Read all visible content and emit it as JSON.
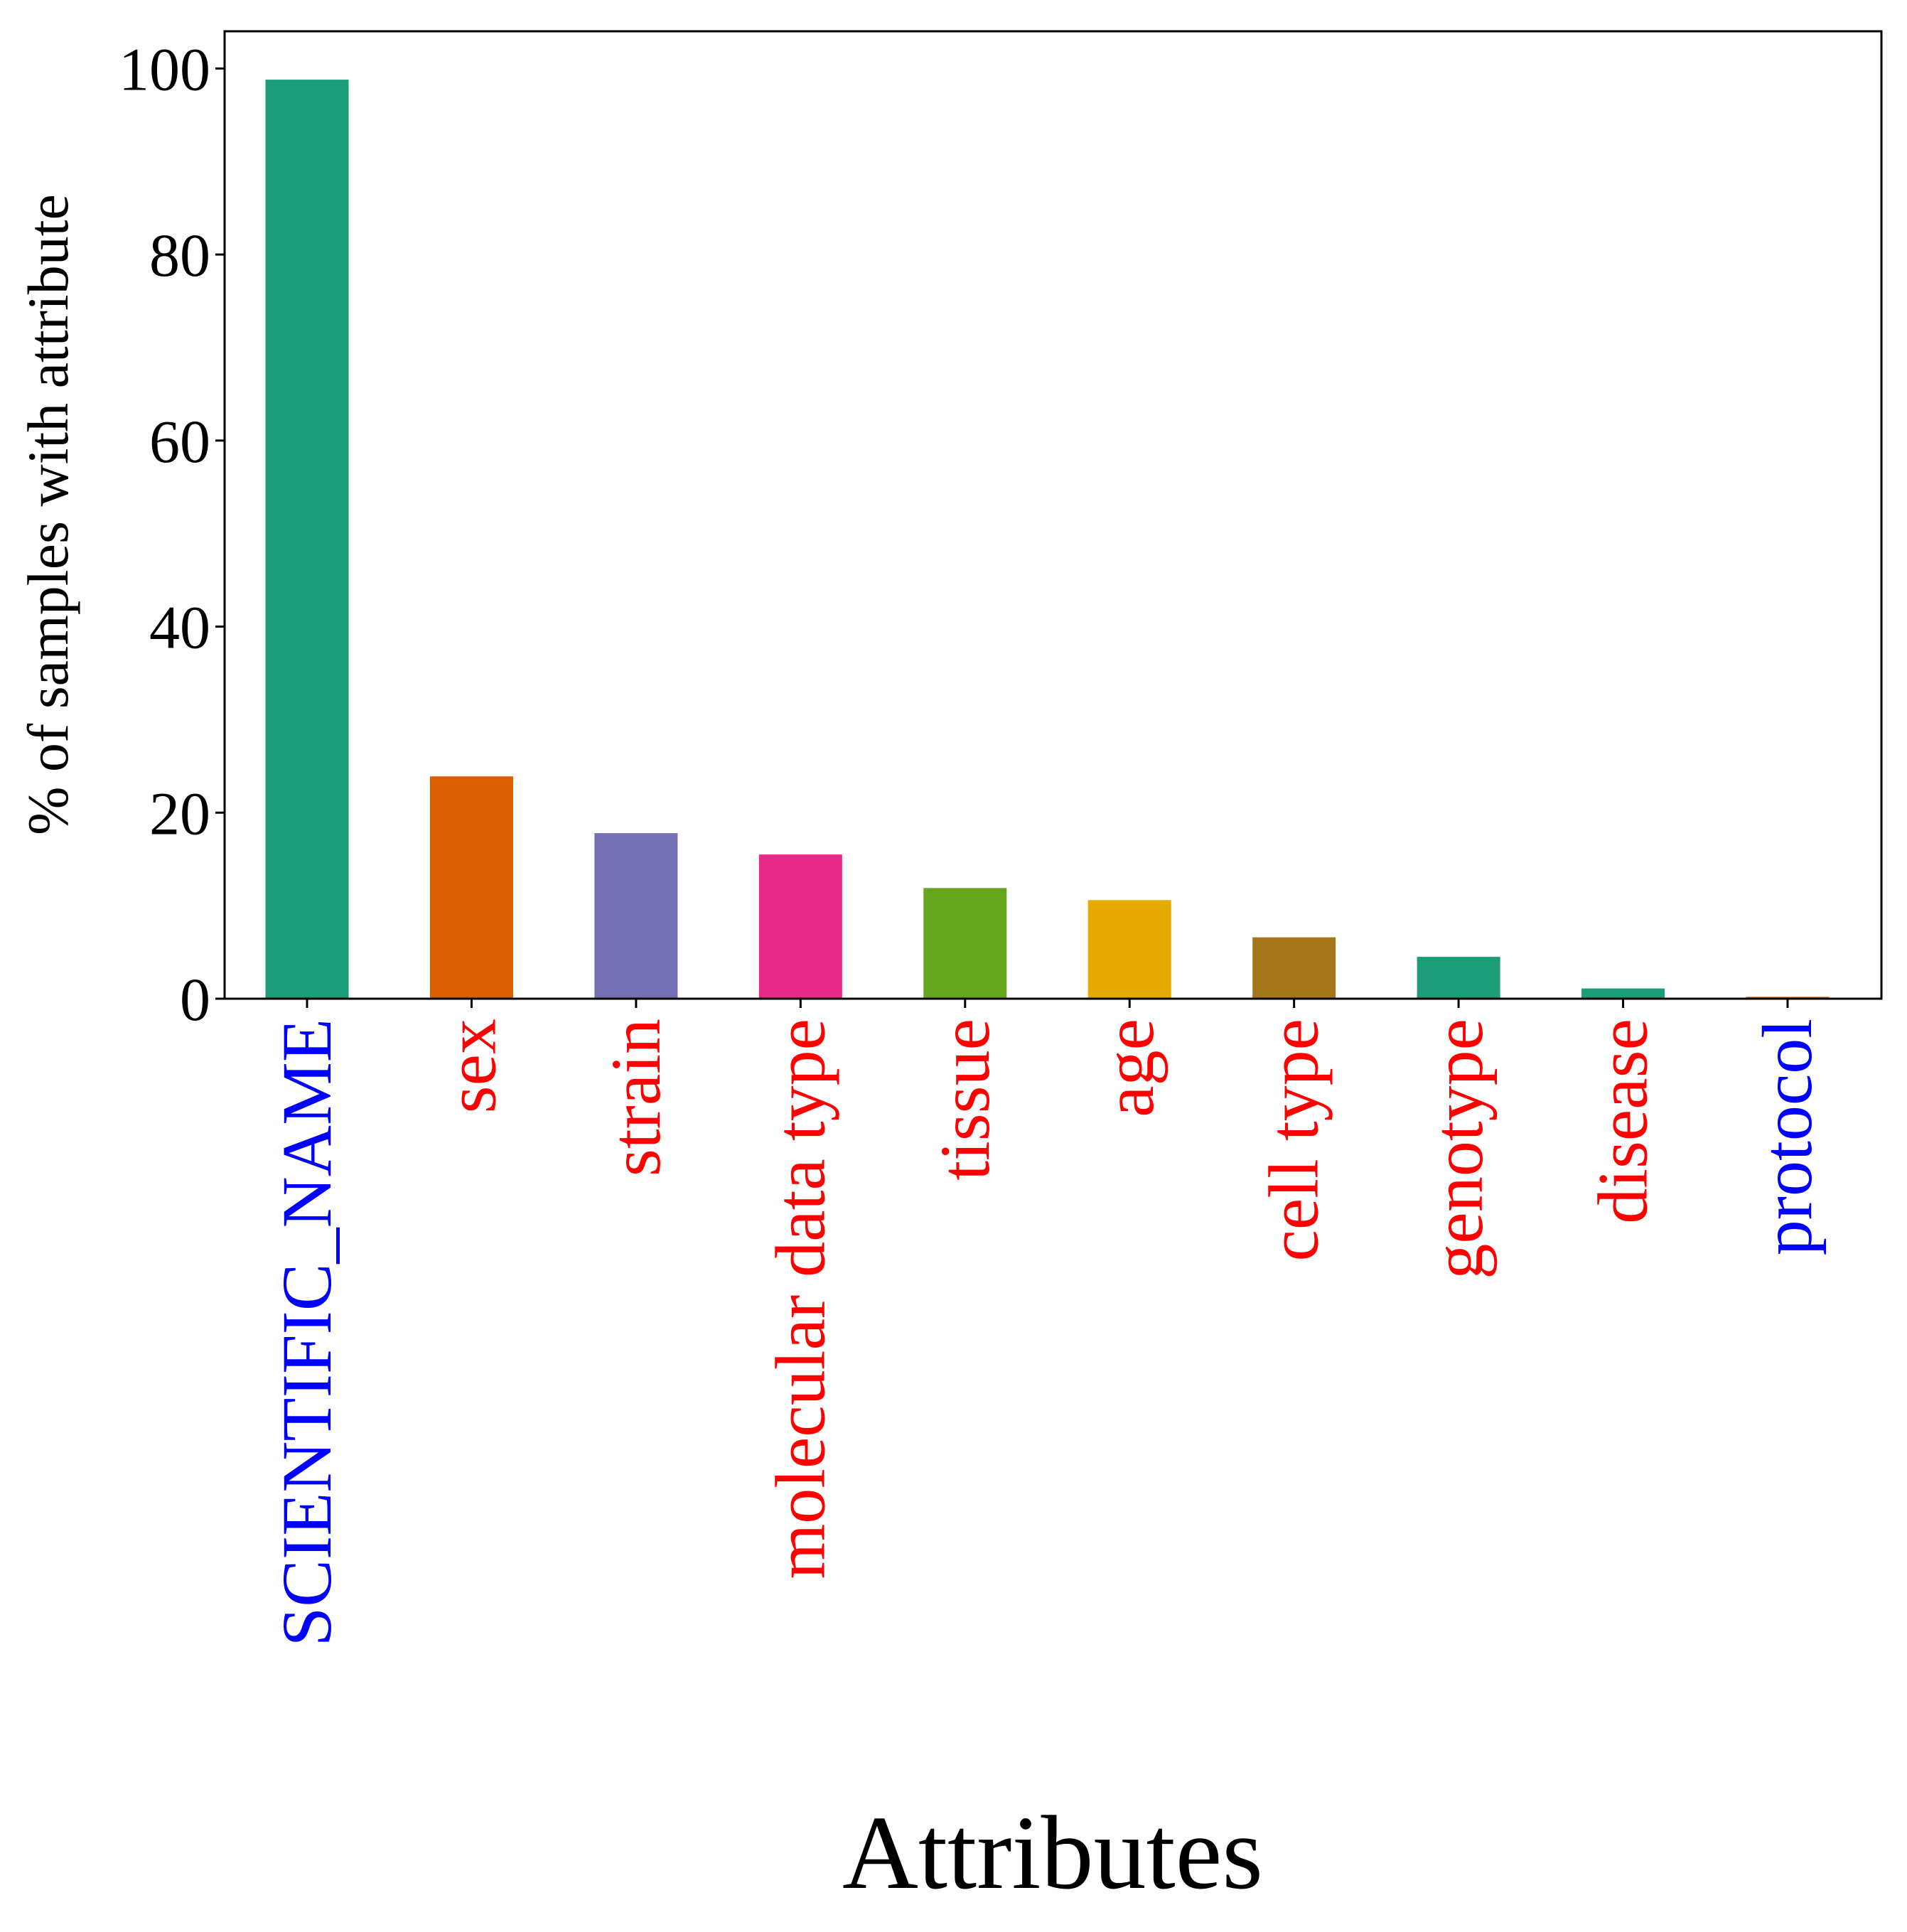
{
  "chart_data": {
    "type": "bar",
    "title": "",
    "xlabel": "Attributes",
    "ylabel": "% of samples with attribute",
    "ylim": [
      0,
      104
    ],
    "yticks": [
      0,
      20,
      40,
      60,
      80,
      100
    ],
    "grid": false,
    "legend": "none",
    "categories": [
      "SCIENTIFIC_NAME",
      "sex",
      "strain",
      "molecular data type",
      "tissue",
      "age",
      "cell type",
      "genotype",
      "disease",
      "protocol"
    ],
    "values": [
      98.8,
      23.9,
      17.8,
      15.5,
      11.9,
      10.6,
      6.6,
      4.5,
      1.1,
      0.2
    ],
    "bar_colors": [
      "#1b9e77",
      "#d95f02",
      "#7570b3",
      "#e7298a",
      "#66a61e",
      "#e6ab02",
      "#a6761d",
      "#1b9e77",
      "#1b9e77",
      "#d95f02"
    ],
    "category_label_colors": [
      "#0000ff",
      "#ff0000",
      "#ff0000",
      "#ff0000",
      "#ff0000",
      "#ff0000",
      "#ff0000",
      "#ff0000",
      "#ff0000",
      "#0000ff"
    ]
  }
}
